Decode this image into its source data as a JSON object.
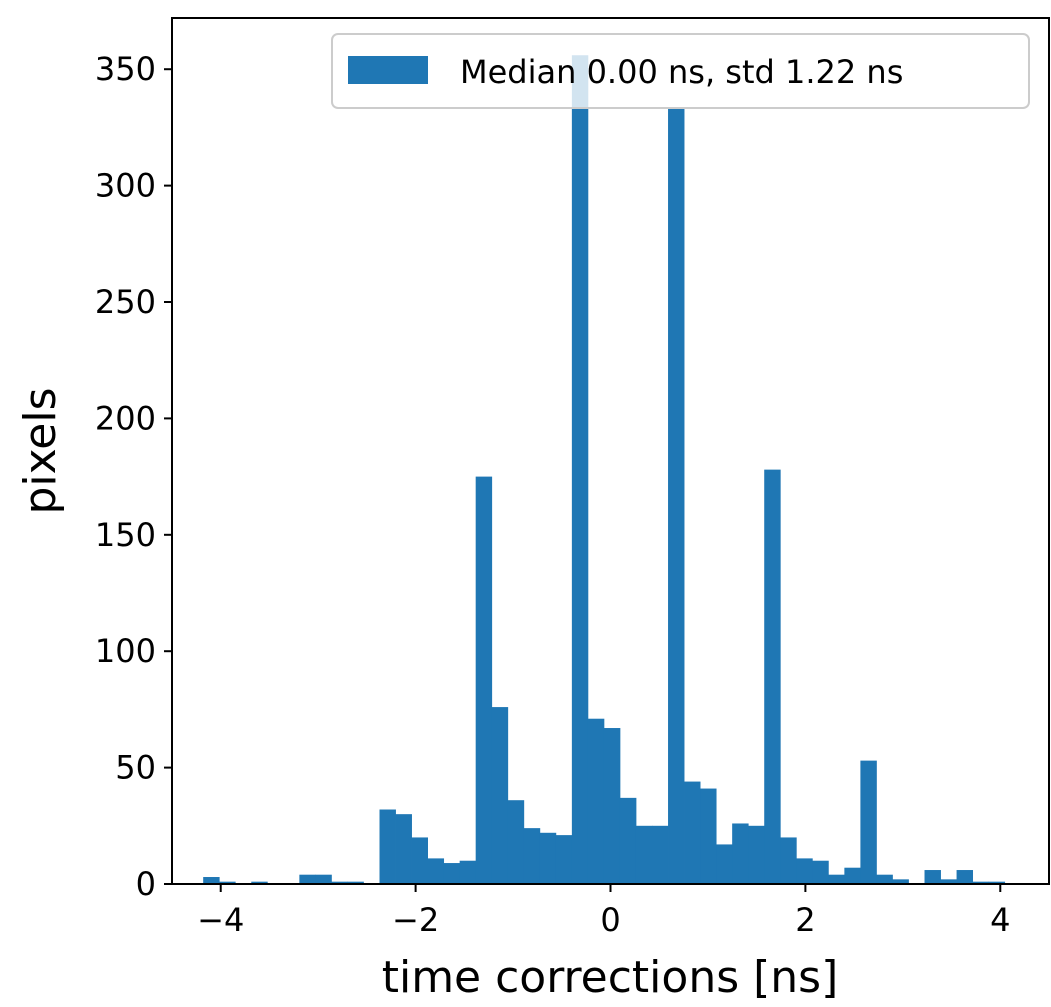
{
  "colors": {
    "bar": "#1f77b4",
    "axis": "#000000",
    "background": "#ffffff"
  },
  "chart_data": {
    "type": "bar",
    "title": "",
    "xlabel": "time corrections [ns]",
    "ylabel": "pixels",
    "xlim": [
      -4.5,
      4.5
    ],
    "ylim": [
      0,
      372
    ],
    "xticks": [
      -4,
      -2,
      0,
      2,
      4
    ],
    "xtick_labels": [
      "−4",
      "−2",
      "0",
      "2",
      "4"
    ],
    "yticks": [
      0,
      50,
      100,
      150,
      200,
      250,
      300,
      350
    ],
    "ytick_labels": [
      "0",
      "50",
      "100",
      "150",
      "200",
      "250",
      "300",
      "350"
    ],
    "grid": false,
    "legend": {
      "label": "Median 0.00 ns, std 1.22 ns",
      "position": "upper right"
    },
    "bin_start": -4.18,
    "bin_width": 0.1645,
    "values": [
      3,
      1,
      0,
      1,
      0,
      0,
      4,
      4,
      1,
      1,
      0,
      32,
      30,
      20,
      11,
      9,
      10,
      175,
      76,
      36,
      24,
      22,
      21,
      356,
      71,
      67,
      37,
      25,
      25,
      333,
      44,
      41,
      17,
      26,
      25,
      178,
      20,
      11,
      10,
      4,
      7,
      53,
      4,
      2,
      0,
      6,
      2,
      6,
      1,
      1
    ]
  }
}
